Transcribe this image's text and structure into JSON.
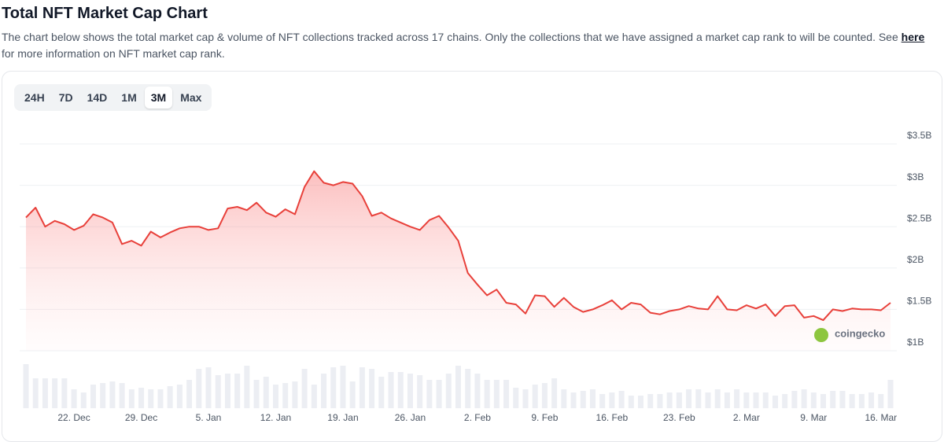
{
  "header": {
    "title": "Total NFT Market Cap Chart",
    "description": "The chart below shows the total market cap & volume of NFT collections tracked across 17 chains. Only the collections that we have assigned a market cap rank to will be counted. See",
    "link": "here",
    "description_end": "for more information on NFT market cap rank."
  },
  "tabs": [
    "24H",
    "7D",
    "14D",
    "1M",
    "3M",
    "Max"
  ],
  "active_tab": "3M",
  "chart_data": {
    "type": "line",
    "categories": [
      null,
      null,
      null,
      null,
      null,
      "22. Dec",
      null,
      null,
      null,
      null,
      null,
      null,
      "29. Dec",
      null,
      null,
      null,
      null,
      null,
      null,
      "5. Jan",
      null,
      null,
      null,
      null,
      null,
      null,
      "12. Jan",
      null,
      null,
      null,
      null,
      null,
      null,
      "19. Jan",
      null,
      null,
      null,
      null,
      null,
      null,
      "26. Jan",
      null,
      null,
      null,
      null,
      null,
      null,
      "2. Feb",
      null,
      null,
      null,
      null,
      null,
      null,
      "9. Feb",
      null,
      null,
      null,
      null,
      null,
      null,
      "16. Feb",
      null,
      null,
      null,
      null,
      null,
      null,
      "23. Feb",
      null,
      null,
      null,
      null,
      null,
      null,
      "2. Mar",
      null,
      null,
      null,
      null,
      null,
      null,
      "9. Mar",
      null,
      null,
      null,
      null,
      null,
      null,
      "16. Mar",
      null
    ],
    "values": [
      2.61,
      2.73,
      2.5,
      2.57,
      2.53,
      2.46,
      2.51,
      2.65,
      2.61,
      2.55,
      2.29,
      2.33,
      2.27,
      2.44,
      2.37,
      2.43,
      2.48,
      2.5,
      2.5,
      2.46,
      2.48,
      2.72,
      2.74,
      2.7,
      2.79,
      2.67,
      2.62,
      2.71,
      2.65,
      2.98,
      3.17,
      3.03,
      3.0,
      3.04,
      3.02,
      2.87,
      2.63,
      2.67,
      2.6,
      2.55,
      2.5,
      2.46,
      2.58,
      2.63,
      2.49,
      2.33,
      1.94,
      1.8,
      1.67,
      1.74,
      1.58,
      1.56,
      1.45,
      1.67,
      1.66,
      1.53,
      1.64,
      1.53,
      1.47,
      1.5,
      1.55,
      1.61,
      1.5,
      1.58,
      1.56,
      1.46,
      1.44,
      1.48,
      1.5,
      1.54,
      1.51,
      1.5,
      1.66,
      1.5,
      1.49,
      1.55,
      1.51,
      1.56,
      1.42,
      1.54,
      1.55,
      1.4,
      1.42,
      1.37,
      1.5,
      1.48,
      1.51,
      1.5,
      1.5,
      1.49,
      1.58
    ],
    "volume": [
      56,
      38,
      38,
      38,
      38,
      24,
      20,
      30,
      32,
      34,
      32,
      24,
      26,
      24,
      24,
      28,
      30,
      36,
      50,
      52,
      42,
      44,
      44,
      54,
      36,
      40,
      30,
      32,
      34,
      50,
      30,
      44,
      52,
      54,
      34,
      52,
      50,
      40,
      46,
      46,
      44,
      42,
      36,
      36,
      44,
      54,
      50,
      44,
      36,
      36,
      36,
      26,
      24,
      30,
      32,
      38,
      24,
      20,
      22,
      24,
      18,
      20,
      22,
      16,
      16,
      18,
      18,
      20,
      20,
      24,
      24,
      20,
      24,
      20,
      24,
      20,
      20,
      20,
      16,
      18,
      22,
      24,
      20,
      18,
      22,
      22,
      18,
      18,
      20,
      18,
      36
    ],
    "color": "#e8403a",
    "volume_color": "#eceef3",
    "ylim": [
      1,
      3.5
    ],
    "yticks": [
      {
        "value": 1,
        "label": "$1B"
      },
      {
        "value": 1.5,
        "label": "$1.5B"
      },
      {
        "value": 2,
        "label": "$2B"
      },
      {
        "value": 2.5,
        "label": "$2.5B"
      },
      {
        "value": 3,
        "label": "$3B"
      },
      {
        "value": 3.5,
        "label": "$3.5B"
      }
    ],
    "grid": true,
    "watermark": "coingecko"
  }
}
